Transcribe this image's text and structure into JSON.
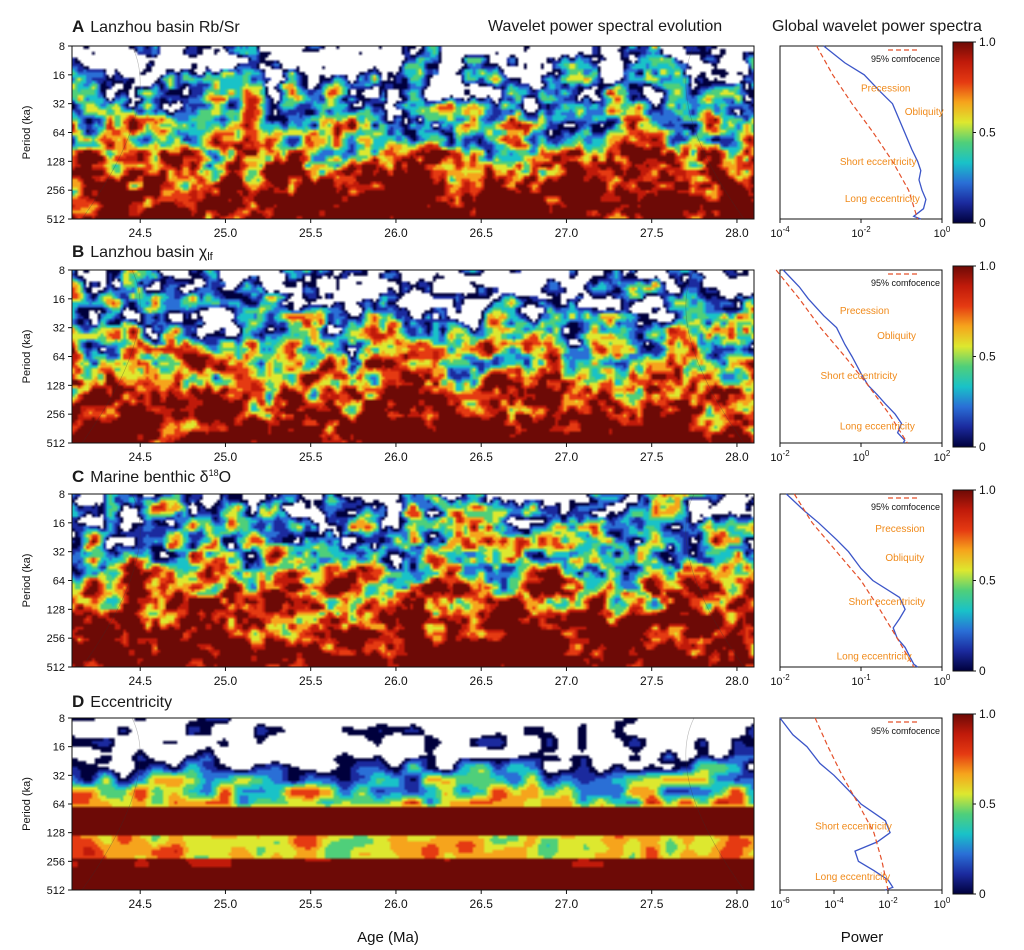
{
  "headings": {
    "evolution": "Wavelet power spectral evolution",
    "global": "Global wavelet power spectra"
  },
  "x_axis_label": "Age (Ma)",
  "power_axis_label": "Power",
  "period_axis_label": "Period (ka)",
  "confidence_label": "95% comfocence",
  "colors": {
    "scale": [
      "#00003c",
      "#1b2a9e",
      "#2a6fd6",
      "#19c2c8",
      "#4fcf7a",
      "#dde82f",
      "#f6a41c",
      "#e53a12",
      "#c01a0a",
      "#6d0a06"
    ],
    "spectrum_line": "#3b55c8",
    "confidence_line": "#e4502a",
    "annotation_text": "#f08a1a"
  },
  "chart_data": [
    {
      "type": "heatmap",
      "panel": "A",
      "title": "Lanzhou basin Rb/Sr",
      "x_ticks": [
        "24.5",
        "25.0",
        "25.5",
        "26.0",
        "26.5",
        "27.0",
        "27.5",
        "28.0"
      ],
      "y_ticks": [
        "8",
        "16",
        "32",
        "64",
        "128",
        "256",
        "512"
      ],
      "xlim": [
        24.1,
        28.1
      ],
      "ylim": [
        8,
        512
      ],
      "colorbar": {
        "ticks": [
          "1.0",
          "0.5",
          "0"
        ],
        "range": [
          0,
          1
        ]
      },
      "global_spectrum": {
        "x_ticks": [
          {
            "base": "10",
            "exp": "-4"
          },
          {
            "base": "10",
            "exp": "-2"
          },
          {
            "base": "10",
            "exp": "0"
          }
        ],
        "xlim_log10": [
          -4,
          0
        ],
        "spectrum": [
          [
            8,
            0.0012
          ],
          [
            12,
            0.004
          ],
          [
            16,
            0.012
          ],
          [
            24,
            0.03
          ],
          [
            32,
            0.06
          ],
          [
            48,
            0.09
          ],
          [
            64,
            0.12
          ],
          [
            96,
            0.18
          ],
          [
            128,
            0.25
          ],
          [
            160,
            0.3
          ],
          [
            200,
            0.27
          ],
          [
            256,
            0.32
          ],
          [
            320,
            0.4
          ],
          [
            400,
            0.35
          ],
          [
            480,
            0.2
          ],
          [
            512,
            0.3
          ]
        ],
        "confidence": [
          [
            8,
            0.0008
          ],
          [
            16,
            0.002
          ],
          [
            32,
            0.006
          ],
          [
            64,
            0.02
          ],
          [
            128,
            0.06
          ],
          [
            256,
            0.15
          ],
          [
            512,
            0.25
          ]
        ],
        "annotations": [
          {
            "label": "Precession",
            "period": 24,
            "power": 0.01
          },
          {
            "label": "Obliquity",
            "period": 42,
            "power": 0.12
          },
          {
            "label": "Short eccentricity",
            "period": 140,
            "power": 0.003
          },
          {
            "label": "Long eccentricity",
            "period": 340,
            "power": 0.004
          }
        ]
      }
    },
    {
      "type": "heatmap",
      "panel": "B",
      "title": "Lanzhou basin χ",
      "title_subscript": "lf",
      "x_ticks": [
        "24.5",
        "25.0",
        "25.5",
        "26.0",
        "26.5",
        "27.0",
        "27.5",
        "28.0"
      ],
      "y_ticks": [
        "8",
        "16",
        "32",
        "64",
        "128",
        "256",
        "512"
      ],
      "xlim": [
        24.1,
        28.1
      ],
      "ylim": [
        8,
        512
      ],
      "colorbar": {
        "ticks": [
          "1.0",
          "0.5",
          "0"
        ],
        "range": [
          0,
          1
        ]
      },
      "global_spectrum": {
        "x_ticks": [
          {
            "base": "10",
            "exp": "-2"
          },
          {
            "base": "10",
            "exp": "0"
          },
          {
            "base": "10",
            "exp": "2"
          }
        ],
        "xlim_log10": [
          -2,
          2
        ],
        "spectrum": [
          [
            8,
            0.012
          ],
          [
            12,
            0.03
          ],
          [
            16,
            0.05
          ],
          [
            24,
            0.12
          ],
          [
            32,
            0.25
          ],
          [
            48,
            0.4
          ],
          [
            64,
            0.6
          ],
          [
            96,
            1.0
          ],
          [
            128,
            1.5
          ],
          [
            160,
            2.5
          ],
          [
            200,
            4.0
          ],
          [
            256,
            7.0
          ],
          [
            320,
            10.0
          ],
          [
            400,
            8.0
          ],
          [
            480,
            12.0
          ],
          [
            512,
            11.0
          ]
        ],
        "confidence": [
          [
            8,
            0.008
          ],
          [
            16,
            0.03
          ],
          [
            32,
            0.1
          ],
          [
            64,
            0.4
          ],
          [
            128,
            1.5
          ],
          [
            256,
            5.0
          ],
          [
            512,
            14.0
          ]
        ],
        "annotations": [
          {
            "label": "Precession",
            "period": 23,
            "power": 0.3
          },
          {
            "label": "Obliquity",
            "period": 42,
            "power": 2.5
          },
          {
            "label": "Short eccentricity",
            "period": 110,
            "power": 0.1
          },
          {
            "label": "Long eccentricity",
            "period": 370,
            "power": 0.3
          }
        ]
      }
    },
    {
      "type": "heatmap",
      "panel": "C",
      "title": "Marine benthic δ",
      "title_superscript": "18",
      "title_suffix": "O",
      "x_ticks": [
        "24.5",
        "25.0",
        "25.5",
        "26.0",
        "26.5",
        "27.0",
        "27.5",
        "28.0"
      ],
      "y_ticks": [
        "8",
        "16",
        "32",
        "64",
        "128",
        "256",
        "512"
      ],
      "xlim": [
        24.1,
        28.1
      ],
      "ylim": [
        8,
        512
      ],
      "colorbar": {
        "ticks": [
          "1.0",
          "0.5",
          "0"
        ],
        "range": [
          0,
          1
        ]
      },
      "global_spectrum": {
        "x_ticks": [
          {
            "base": "10",
            "exp": "-2"
          },
          {
            "base": "10",
            "exp": "-1"
          },
          {
            "base": "10",
            "exp": "0"
          }
        ],
        "xlim_log10": [
          -2,
          0
        ],
        "spectrum": [
          [
            8,
            0.012
          ],
          [
            12,
            0.02
          ],
          [
            16,
            0.03
          ],
          [
            24,
            0.05
          ],
          [
            32,
            0.07
          ],
          [
            48,
            0.1
          ],
          [
            64,
            0.14
          ],
          [
            96,
            0.3
          ],
          [
            128,
            0.35
          ],
          [
            160,
            0.3
          ],
          [
            200,
            0.25
          ],
          [
            256,
            0.28
          ],
          [
            320,
            0.35
          ],
          [
            400,
            0.4
          ],
          [
            480,
            0.45
          ],
          [
            512,
            0.5
          ]
        ],
        "confidence": [
          [
            8,
            0.015
          ],
          [
            16,
            0.025
          ],
          [
            32,
            0.05
          ],
          [
            64,
            0.1
          ],
          [
            128,
            0.17
          ],
          [
            256,
            0.28
          ],
          [
            512,
            0.45
          ]
        ],
        "annotations": [
          {
            "label": "Precession",
            "period": 20,
            "power": 0.15
          },
          {
            "label": "Obliquity",
            "period": 40,
            "power": 0.2
          },
          {
            "label": "Short eccentricity",
            "period": 115,
            "power": 0.07
          },
          {
            "label": "Long eccentricity",
            "period": 430,
            "power": 0.05
          }
        ]
      }
    },
    {
      "type": "heatmap",
      "panel": "D",
      "title": "Eccentricity",
      "x_ticks": [
        "24.5",
        "25.0",
        "25.5",
        "26.0",
        "26.5",
        "27.0",
        "27.5",
        "28.0"
      ],
      "y_ticks": [
        "8",
        "16",
        "32",
        "64",
        "128",
        "256",
        "512"
      ],
      "xlim": [
        24.1,
        28.1
      ],
      "ylim": [
        8,
        512
      ],
      "colorbar": {
        "ticks": [
          "1.0",
          "0.5",
          "0"
        ],
        "range": [
          0,
          1
        ]
      },
      "global_spectrum": {
        "x_ticks": [
          {
            "base": "10",
            "exp": "-6"
          },
          {
            "base": "10",
            "exp": "-4"
          },
          {
            "base": "10",
            "exp": "-2"
          },
          {
            "base": "10",
            "exp": "0"
          }
        ],
        "xlim_log10": [
          -6,
          0
        ],
        "spectrum": [
          [
            8,
            1e-06
          ],
          [
            12,
            3e-06
          ],
          [
            16,
            1e-05
          ],
          [
            24,
            3e-05
          ],
          [
            32,
            0.0001
          ],
          [
            48,
            0.0004
          ],
          [
            64,
            0.001
          ],
          [
            96,
            0.008
          ],
          [
            128,
            0.012
          ],
          [
            160,
            0.004
          ],
          [
            200,
            0.0006
          ],
          [
            256,
            0.0008
          ],
          [
            320,
            0.003
          ],
          [
            400,
            0.01
          ],
          [
            480,
            0.015
          ],
          [
            512,
            0.008
          ]
        ],
        "confidence": [
          [
            8,
            2e-05
          ],
          [
            16,
            6e-05
          ],
          [
            32,
            0.0002
          ],
          [
            64,
            0.0008
          ],
          [
            128,
            0.003
          ],
          [
            256,
            0.006
          ],
          [
            512,
            0.01
          ]
        ],
        "annotations": [
          {
            "label": "Short eccentricity",
            "period": 118,
            "power": 2e-05
          },
          {
            "label": "Long eccentricity",
            "period": 400,
            "power": 2e-05
          }
        ]
      }
    }
  ]
}
